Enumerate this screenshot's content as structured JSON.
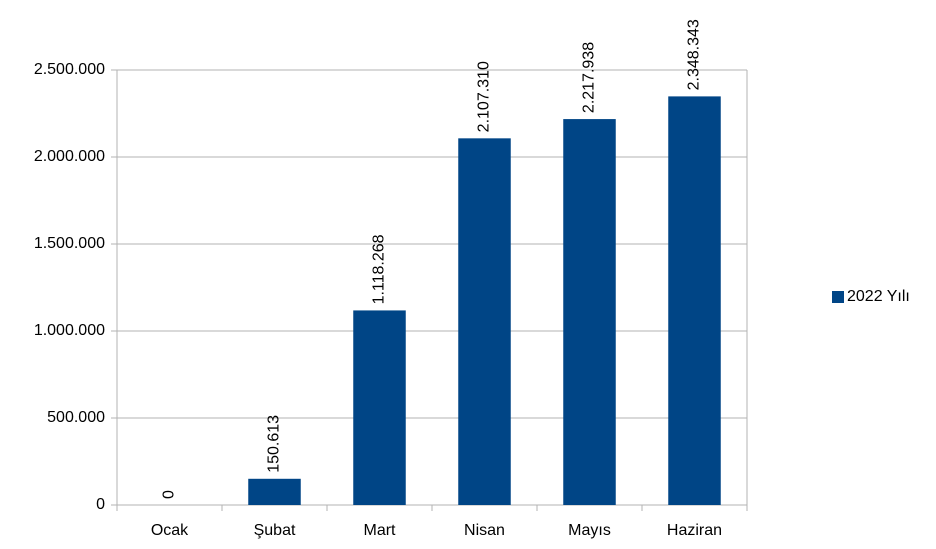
{
  "chart_data": {
    "type": "bar",
    "categories": [
      "Ocak",
      "Şubat",
      "Mart",
      "Nisan",
      "Mayıs",
      "Haziran"
    ],
    "series": [
      {
        "name": "2022 Yılı",
        "color": "#004586",
        "values": [
          0,
          150613,
          1118268,
          2107310,
          2217938,
          2348343
        ],
        "value_labels": [
          "0",
          "150.613",
          "1.118.268",
          "2.107.310",
          "2.217.938",
          "2.348.343"
        ]
      }
    ],
    "ylim": [
      0,
      2500000
    ],
    "yticks": [
      0,
      {
        "value": 500000,
        "label": "500.000"
      },
      {
        "value": 1000000,
        "label": "1.000.000"
      },
      {
        "value": 1500000,
        "label": "1.500.000"
      },
      {
        "value": 2000000,
        "label": "2.000.000"
      },
      {
        "value": 2500000,
        "label": "2.500.000"
      }
    ],
    "grid": true,
    "legend": "right"
  }
}
